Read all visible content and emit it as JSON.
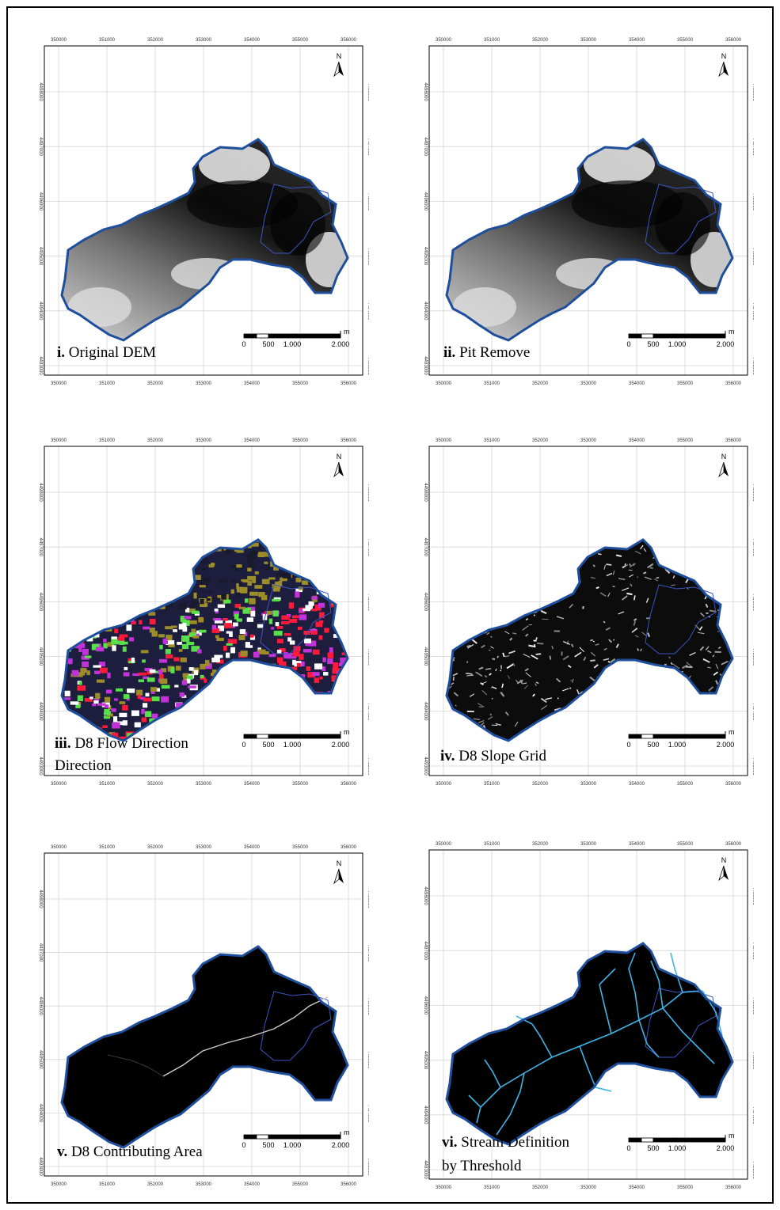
{
  "figure": {
    "x_ticks": [
      "350000",
      "351000",
      "352000",
      "353000",
      "354000",
      "355000",
      "356000"
    ],
    "y_ticks": [
      "4498000",
      "4497000",
      "4496000",
      "4495000",
      "4494000",
      "4493000"
    ],
    "north_label": "N",
    "scale": {
      "unit": "m",
      "ticks": [
        "0",
        "500",
        "1.000",
        "2.000"
      ]
    },
    "colors": {
      "boundary": "#1f4f9c",
      "frame": "#000000",
      "stream": "#3fb4e6",
      "contrib": "#cccccc"
    }
  },
  "panels": [
    {
      "numeral": "i.",
      "title": "Original  DEM",
      "title2": "",
      "kind": "dem"
    },
    {
      "numeral": "ii.",
      "title": "Pit Remove",
      "title2": "",
      "kind": "pit"
    },
    {
      "numeral": "iii.",
      "title": "D8 Flow Direction",
      "title2": "Direction",
      "kind": "flow"
    },
    {
      "numeral": "iv.",
      "title": "D8  Slope Grid",
      "title2": "",
      "kind": "slope"
    },
    {
      "numeral": "v.",
      "title": "D8 Contributing  Area",
      "title2": "",
      "kind": "contrib"
    },
    {
      "numeral": "vi.",
      "title": "Stream Definition",
      "title2": "by Threshold",
      "kind": "stream"
    }
  ]
}
